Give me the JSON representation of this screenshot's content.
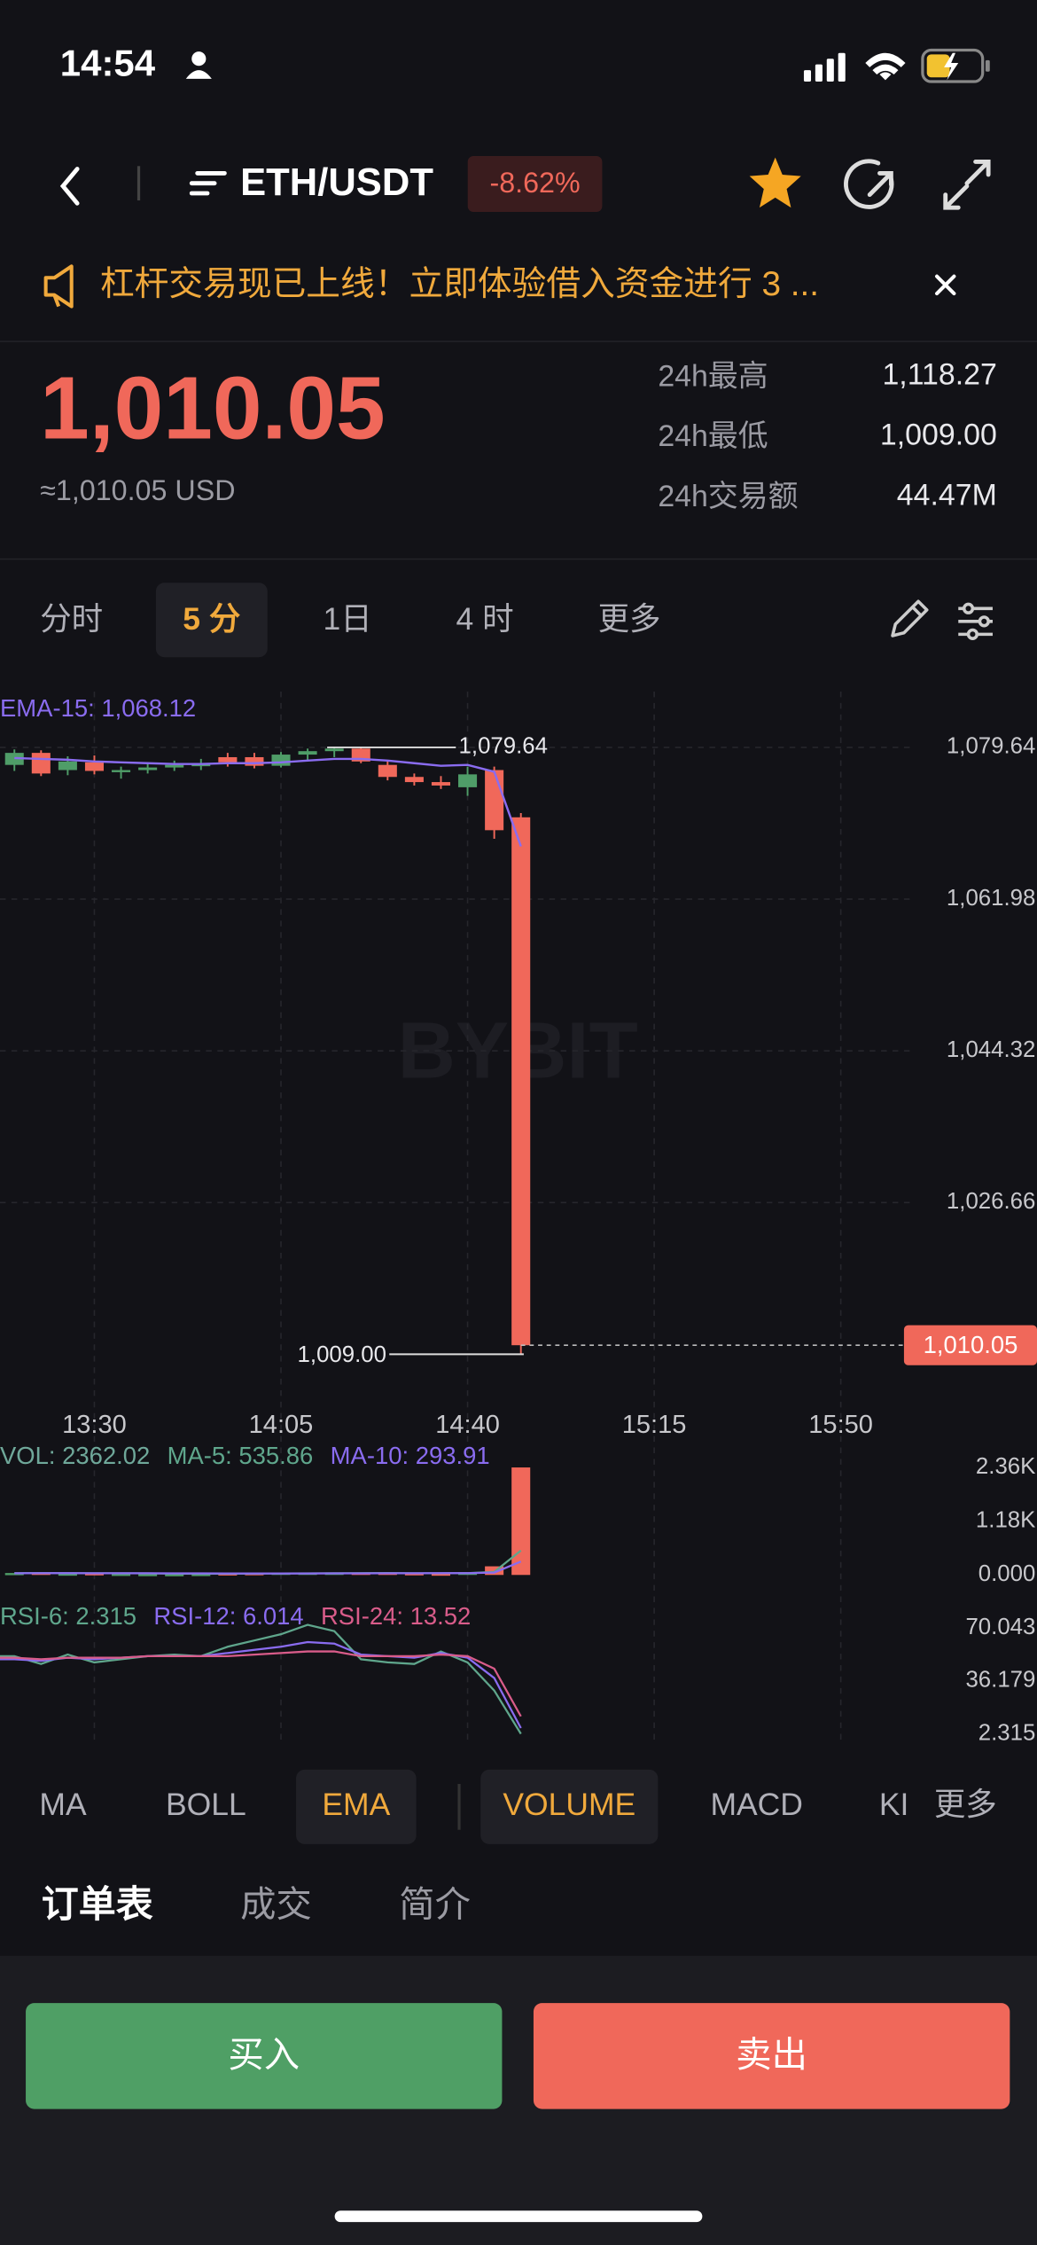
{
  "status_bar": {
    "time": "14:54"
  },
  "header": {
    "pair": "ETH/USDT",
    "change": "-8.62%"
  },
  "banner": {
    "text": "杠杆交易现已上线！立即体验借入资金进行 3 ..."
  },
  "price": {
    "last": "1,010.05",
    "usd": "≈1,010.05 USD",
    "stats": [
      {
        "label": "24h最高",
        "value": "1,118.27"
      },
      {
        "label": "24h最低",
        "value": "1,009.00"
      },
      {
        "label": "24h交易额",
        "value": "44.47M"
      }
    ]
  },
  "interval_tabs": [
    "分时",
    "5 分",
    "1日",
    "4 时",
    "更多"
  ],
  "active_interval": 1,
  "indicator_tabs": [
    "MA",
    "BOLL",
    "EMA",
    "VOLUME",
    "MACD",
    "KI",
    "更多"
  ],
  "active_indicators": [
    2,
    3
  ],
  "info_tabs": [
    "订单表",
    "成交",
    "简介"
  ],
  "actions": {
    "buy": "买入",
    "sell": "卖出"
  },
  "chart_data": [
    {
      "type": "candlestick",
      "watermark": "BYBIT",
      "up_color": "#4f9d68",
      "down_color": "#f0685a",
      "grid": true,
      "x": [
        795,
        800,
        805,
        810,
        815,
        820,
        825,
        830,
        835,
        840,
        845,
        850,
        855,
        860,
        865,
        870,
        875,
        880,
        885,
        890
      ],
      "open": [
        1077.6,
        1079.0,
        1077.0,
        1077.9,
        1076.9,
        1077.0,
        1077.3,
        1077.6,
        1078.5,
        1078.5,
        1077.5,
        1078.8,
        1079.2,
        1079.5,
        1077.6,
        1076.2,
        1075.6,
        1075.0,
        1077.0,
        1071.5
      ],
      "high": [
        1079.4,
        1079.3,
        1078.6,
        1078.7,
        1077.4,
        1077.8,
        1078.1,
        1078.3,
        1079.0,
        1079.0,
        1079.1,
        1079.5,
        1079.64,
        1079.64,
        1078.0,
        1076.6,
        1076.3,
        1077.4,
        1077.4,
        1072.0
      ],
      "low": [
        1076.9,
        1076.3,
        1076.4,
        1076.5,
        1076.0,
        1076.6,
        1076.9,
        1077.0,
        1077.4,
        1077.2,
        1077.3,
        1078.0,
        1078.5,
        1077.8,
        1075.8,
        1075.2,
        1074.8,
        1074.0,
        1069.0,
        1009.0
      ],
      "close": [
        1079.0,
        1076.6,
        1078.0,
        1076.9,
        1077.0,
        1077.3,
        1077.6,
        1077.7,
        1077.9,
        1077.5,
        1078.8,
        1079.2,
        1079.5,
        1078.0,
        1076.2,
        1075.6,
        1075.2,
        1076.5,
        1070.0,
        1010.05
      ],
      "ema": {
        "label": "EMA-15: 1,068.12",
        "color": "#8a6cf0",
        "values": [
          1078.4,
          1078.3,
          1078.2,
          1078.0,
          1077.9,
          1077.8,
          1077.7,
          1077.7,
          1077.8,
          1077.8,
          1077.9,
          1078.1,
          1078.3,
          1078.3,
          1078.1,
          1077.8,
          1077.5,
          1077.6,
          1076.8,
          1068.12
        ]
      },
      "xlim": [
        792.3,
        986.8
      ],
      "xticks": [
        {
          "value": 810,
          "label": "13:30"
        },
        {
          "value": 845,
          "label": "14:05"
        },
        {
          "value": 880,
          "label": "14:40"
        },
        {
          "value": 915,
          "label": "15:15"
        },
        {
          "value": 950,
          "label": "15:50"
        }
      ],
      "ylim": [
        1003.31,
        1086.14
      ],
      "yticks": [
        {
          "value": 1079.64,
          "label": "1,079.64"
        },
        {
          "value": 1061.98,
          "label": "1,061.98"
        },
        {
          "value": 1044.32,
          "label": "1,044.32"
        },
        {
          "value": 1026.66,
          "label": "1,026.66"
        }
      ],
      "annotations": [
        {
          "value": 1079.64,
          "label": "1,079.64"
        },
        {
          "value": 1009.0,
          "label": "1,009.00"
        }
      ],
      "last_price": {
        "value": 1010.05,
        "label": "1,010.05"
      }
    },
    {
      "type": "bar",
      "x": [
        795,
        800,
        805,
        810,
        815,
        820,
        825,
        830,
        835,
        840,
        845,
        850,
        855,
        860,
        865,
        870,
        875,
        880,
        885,
        890
      ],
      "xlim": [
        792.3,
        986.8
      ],
      "values": [
        42,
        55,
        30,
        38,
        25,
        20,
        18,
        22,
        35,
        40,
        48,
        52,
        55,
        50,
        54.8,
        38,
        30,
        60,
        189.28,
        2362.02
      ],
      "legend": [
        {
          "text": "VOL: 2362.02",
          "color": "#6fa89a"
        },
        {
          "text": "MA-5: 535.86",
          "color": "#5fa68c"
        },
        {
          "text": "MA-10: 293.91",
          "color": "#8a6cf0"
        }
      ],
      "lines": [
        {
          "color": "#5fa68c",
          "values": [
            40,
            42,
            40,
            38,
            38,
            34,
            27,
            25,
            28,
            31,
            33,
            35,
            36,
            39,
            42,
            38,
            38,
            40,
            67,
            535.86
          ]
        },
        {
          "color": "#8a6cf0",
          "values": [
            38,
            40,
            39,
            38,
            38,
            37,
            35,
            34,
            33,
            32,
            33,
            33,
            34,
            35,
            37,
            38,
            39,
            40,
            52,
            293.91
          ]
        }
      ],
      "ylim": [
        0,
        2517
      ],
      "yticks": [
        {
          "value": 0,
          "label": "0.000"
        },
        {
          "value": 1180,
          "label": "1.18K"
        },
        {
          "value": 2360,
          "label": "2.36K"
        }
      ]
    },
    {
      "type": "line",
      "x": [
        795,
        800,
        805,
        810,
        815,
        820,
        825,
        830,
        835,
        840,
        845,
        850,
        855,
        860,
        865,
        870,
        875,
        880,
        885,
        890
      ],
      "xlim": [
        792.3,
        986.8
      ],
      "series": [
        {
          "label": "RSI-6: 2.315",
          "color": "#5fa68c",
          "values": [
            52,
            47,
            53,
            48,
            50,
            52,
            53,
            52,
            58,
            62,
            66,
            72,
            68,
            50,
            48,
            47,
            55,
            48,
            30,
            2.315
          ]
        },
        {
          "label": "RSI-12: 6.014",
          "color": "#8a6cf0",
          "values": [
            50,
            49,
            51,
            50,
            51,
            52,
            52,
            52,
            54,
            56,
            58,
            61,
            60,
            53,
            52,
            51,
            54,
            51,
            38,
            6.014
          ]
        },
        {
          "label": "RSI-24: 13.52",
          "color": "#d95c8a",
          "values": [
            51,
            50,
            51,
            51,
            51,
            52,
            52,
            52,
            52,
            53,
            54,
            55,
            55,
            52,
            52,
            52,
            53,
            52,
            44,
            13.52
          ]
        }
      ],
      "ylim": [
        -4.09,
        85.6
      ],
      "yticks": [
        {
          "value": 70.043,
          "label": "70.043"
        },
        {
          "value": 36.179,
          "label": "36.179"
        },
        {
          "value": 2.315,
          "label": "2.315"
        }
      ]
    }
  ]
}
